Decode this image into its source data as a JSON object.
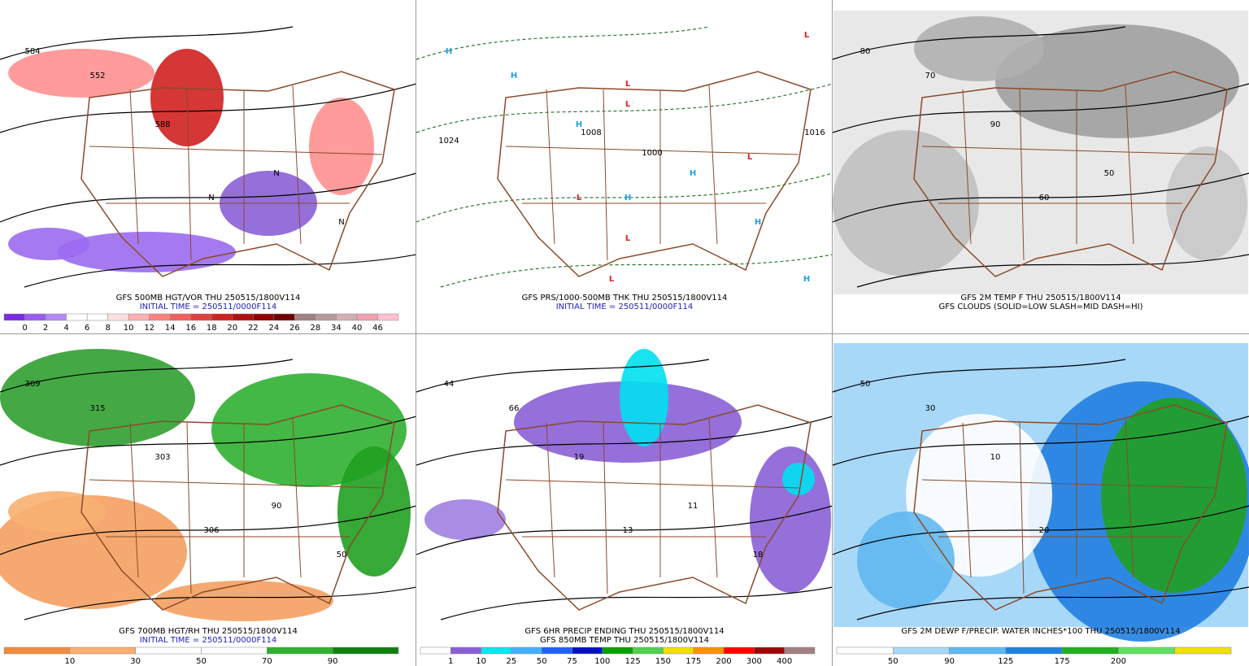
{
  "panels": [
    {
      "captions": [
        "GFS 500MB HGT/VOR THU 250515/1800V114",
        "INITIAL TIME = 250511/0000F114"
      ],
      "colorbar": {
        "colors": [
          "#7b2be0",
          "#9b5cf0",
          "#b48af5",
          "#ffffff",
          "#ffffff",
          "#ffe0e0",
          "#ffb0b0",
          "#ff8080",
          "#f06060",
          "#e04040",
          "#d02020",
          "#b01010",
          "#900000",
          "#700000",
          "#a08080",
          "#b89a9a",
          "#d0b0b0",
          "#f0a0b0",
          "#ffc0d0"
        ],
        "labels": [
          0,
          2,
          4,
          6,
          8,
          10,
          12,
          14,
          16,
          18,
          20,
          22,
          24,
          26,
          28,
          34,
          40,
          46
        ]
      },
      "map_labels": [
        "584",
        "552",
        "588",
        "N",
        "N",
        "N"
      ]
    },
    {
      "captions": [
        "GFS PRS/1000-500MB THK THU 250515/1800V114",
        "INITIAL TIME = 250511/0000F114"
      ],
      "map_labels": [
        "H",
        "H",
        "H",
        "H",
        "H",
        "H",
        "H",
        "L",
        "L",
        "L",
        "L",
        "L",
        "L",
        "L",
        "1024",
        "1016",
        "1008",
        "1000"
      ]
    },
    {
      "captions": [
        "GFS 2M TEMP F THU 250515/1800V114",
        "GFS CLOUDS (SOLID=LOW SLASH=MID DASH=HI)"
      ],
      "map_labels": [
        "80",
        "70",
        "90",
        "60",
        "50"
      ]
    },
    {
      "captions": [
        "GFS 700MB HGT/RH THU 250515/1800V114",
        "INITIAL TIME = 250511/0000F114"
      ],
      "colorbar": {
        "colors": [
          "#f08c40",
          "#f8b070",
          "#ffffff",
          "#ffffff",
          "#30b030",
          "#108010"
        ],
        "labels": [
          10,
          30,
          50,
          70,
          90
        ]
      },
      "map_labels": [
        "309",
        "315",
        "303",
        "306",
        "90",
        "50"
      ]
    },
    {
      "captions": [
        "GFS 6HR PRECIP ENDING THU 250515/1800V114",
        "GFS 850MB TEMP THU 250515/1800V114"
      ],
      "colorbar": {
        "colors": [
          "#ffffff",
          "#8a5fd6",
          "#00e8f0",
          "#40b0ff",
          "#2060ff",
          "#0010c0",
          "#00a000",
          "#50d050",
          "#f0e000",
          "#ff9000",
          "#ff0000",
          "#a00000",
          "#a08080"
        ],
        "labels": [
          1,
          10,
          25,
          50,
          75,
          100,
          125,
          150,
          175,
          200,
          300,
          400
        ]
      },
      "map_labels": [
        "44",
        "66",
        "19",
        "13",
        "11",
        "18"
      ]
    },
    {
      "captions": [
        "GFS 2M DEWP F/PRECIP. WATER INCHES*100 THU 250515/1800V114"
      ],
      "colorbar": {
        "colors": [
          "#ffffff",
          "#a8d8f8",
          "#60b8f0",
          "#2080e0",
          "#20b020",
          "#60e060",
          "#f0e000"
        ],
        "labels": [
          50,
          90,
          125,
          175,
          200
        ]
      },
      "map_labels": [
        "50",
        "30",
        "10",
        "20"
      ]
    }
  ]
}
